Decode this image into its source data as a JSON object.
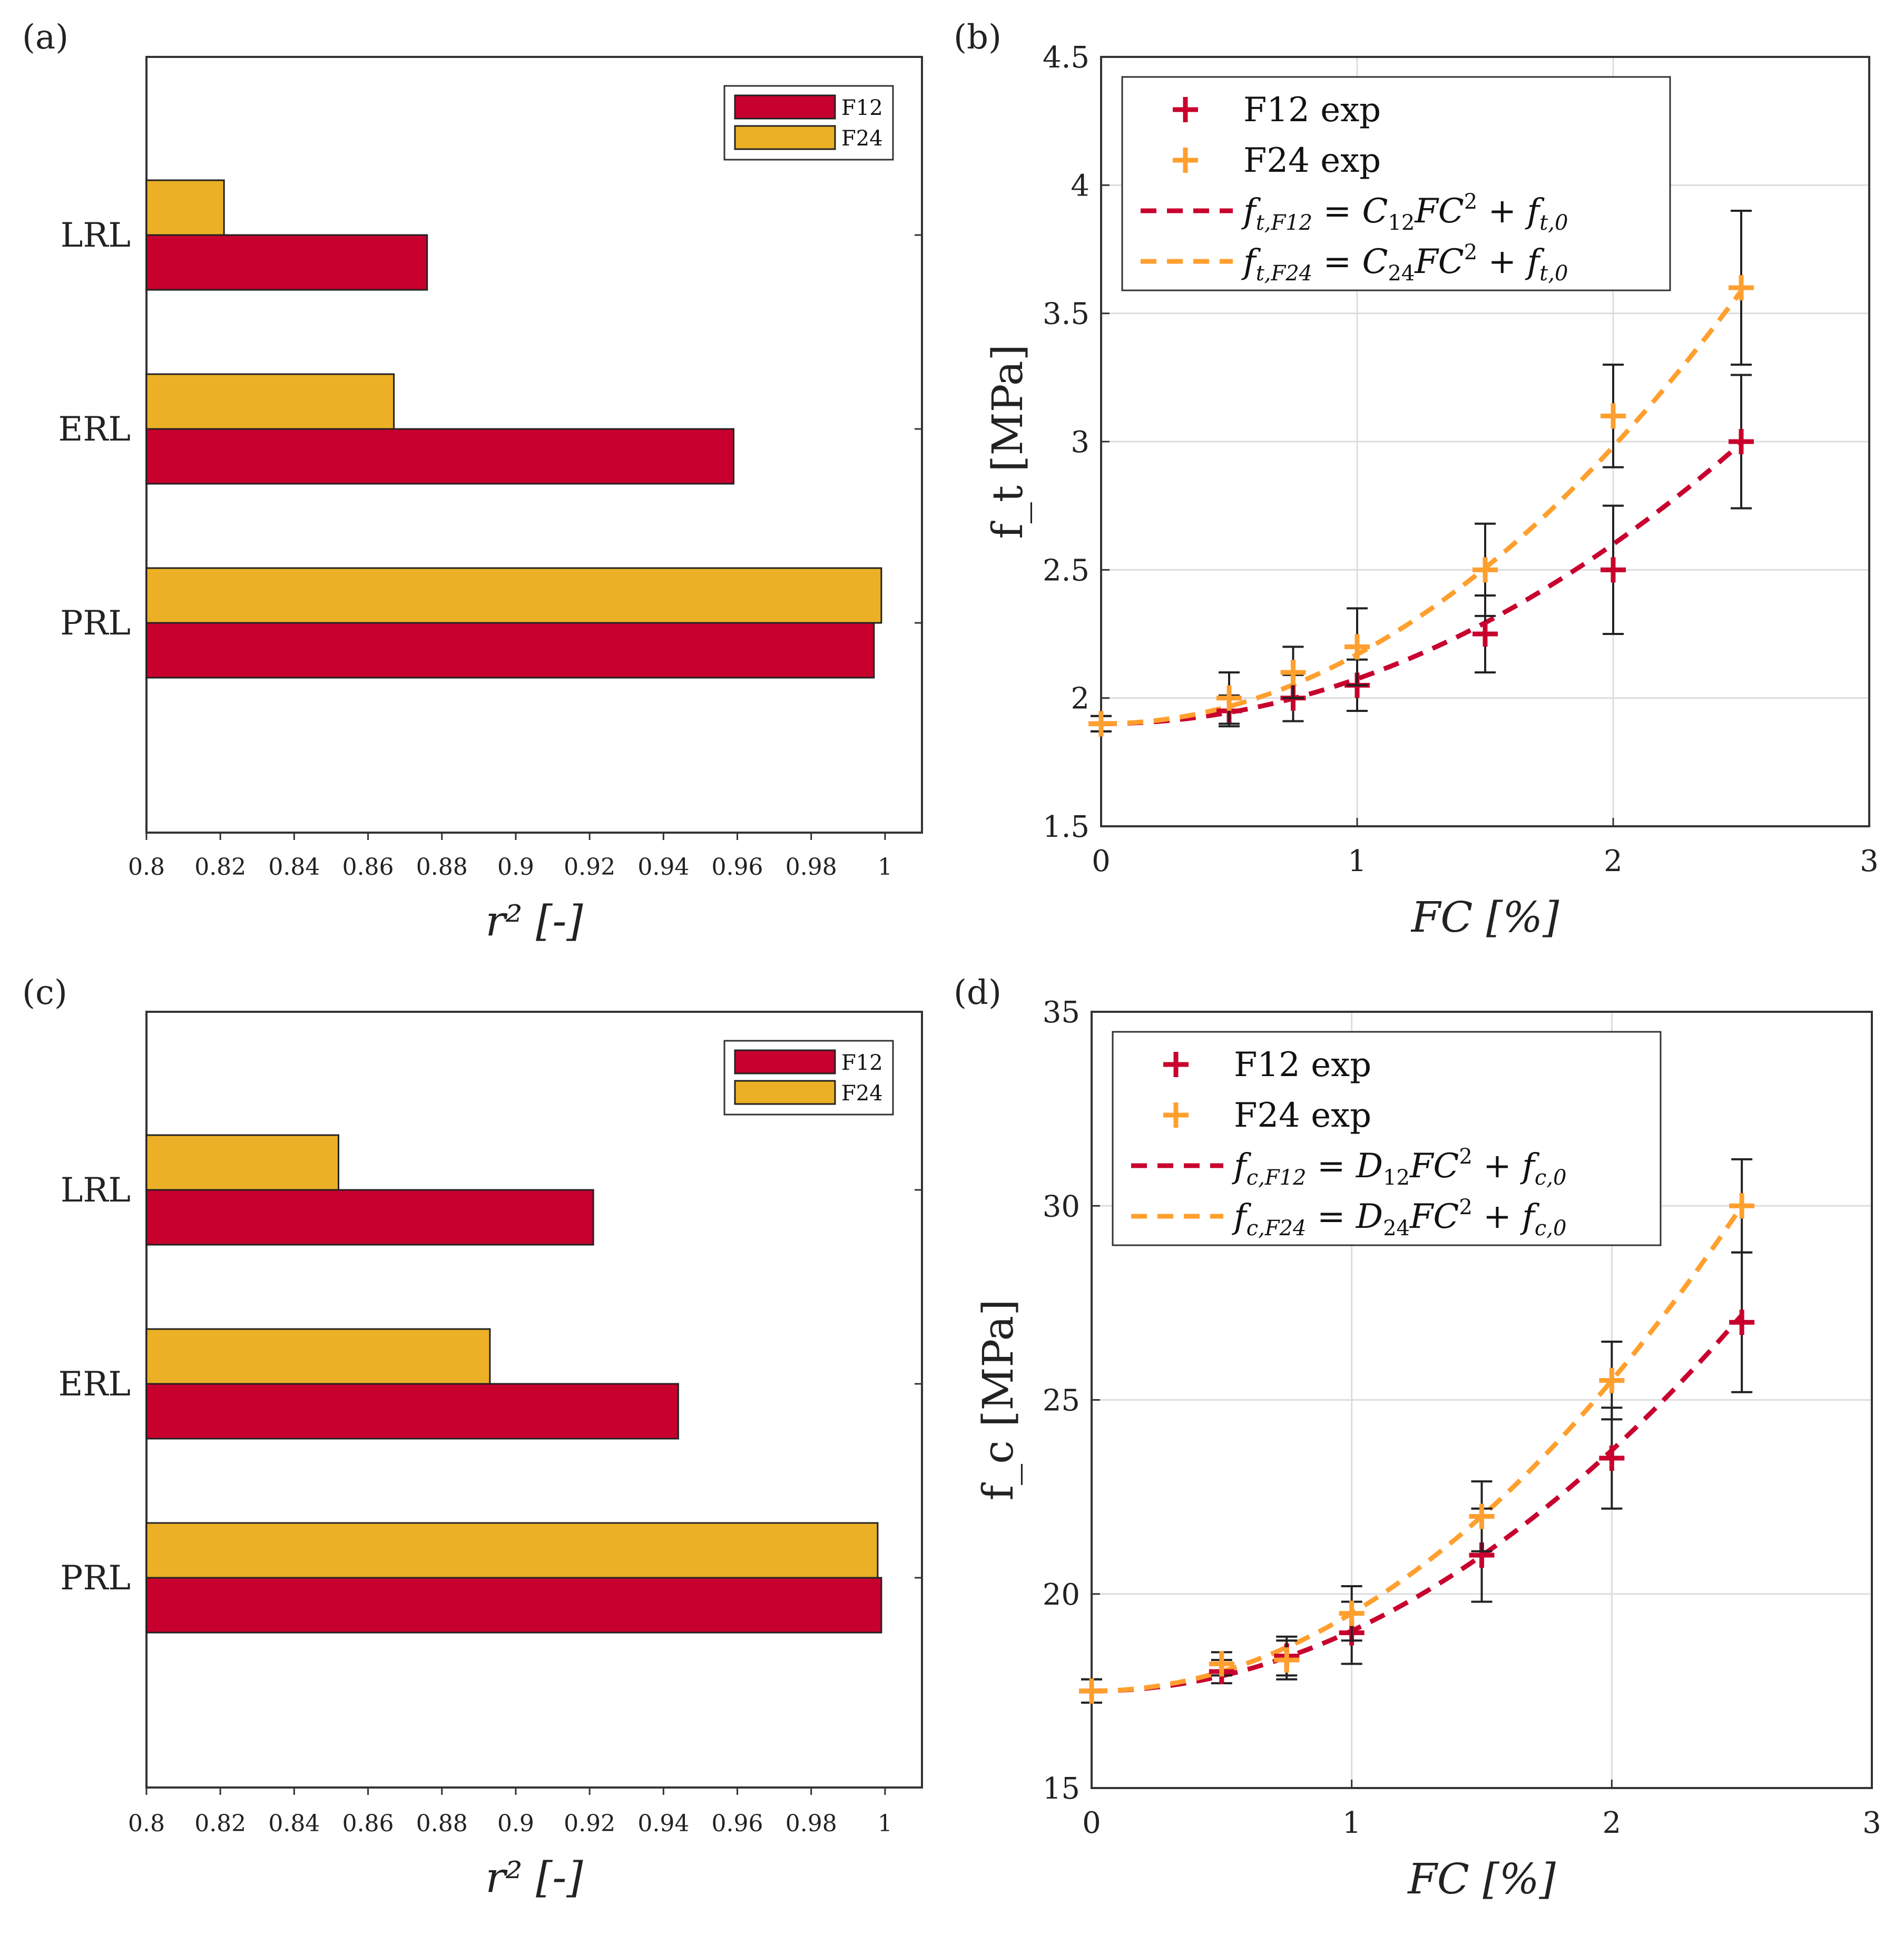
{
  "colors": {
    "f12": "#c8002e",
    "f24": "#ecb026",
    "f24_line": "#ff9f2e",
    "err": "#222222"
  },
  "chart_data": [
    {
      "id": "a",
      "panel_label": "(a)",
      "type": "bar",
      "orientation": "horizontal",
      "categories": [
        "LRL",
        "ERL",
        "PRL"
      ],
      "series": [
        {
          "name": "F12",
          "values": [
            0.876,
            0.959,
            0.997
          ]
        },
        {
          "name": "F24",
          "values": [
            0.821,
            0.867,
            0.999
          ]
        }
      ],
      "xlabel": "r² [-]",
      "xlim": [
        0.8,
        1.01
      ],
      "xticks": [
        0.8,
        0.82,
        0.84,
        0.86,
        0.88,
        0.9,
        0.92,
        0.94,
        0.96,
        0.98,
        1
      ],
      "xtick_labels": [
        "0.8",
        "0.82",
        "0.84",
        "0.86",
        "0.88",
        "0.9",
        "0.92",
        "0.94",
        "0.96",
        "0.98",
        "1"
      ],
      "legend": [
        "F12",
        "F24"
      ],
      "legend_position": "top-right"
    },
    {
      "id": "b",
      "panel_label": "(b)",
      "type": "scatter",
      "xlabel": "FC [%]",
      "ylabel": "f_t [MPa]",
      "xlim": [
        0,
        3
      ],
      "ylim": [
        1.5,
        4.5
      ],
      "xticks": [
        0,
        1,
        2,
        3
      ],
      "xtick_labels": [
        "0",
        "1",
        "2",
        "3"
      ],
      "yticks": [
        1.5,
        2,
        2.5,
        3,
        3.5,
        4,
        4.5
      ],
      "ytick_labels": [
        "1.5",
        "2",
        "2.5",
        "3",
        "3.5",
        "4",
        "4.5"
      ],
      "grid": true,
      "legend_position": "top-left",
      "series": [
        {
          "name": "F12 exp",
          "x": [
            0,
            0.5,
            0.75,
            1,
            1.5,
            2,
            2.5
          ],
          "y": [
            1.9,
            1.95,
            2.0,
            2.05,
            2.25,
            2.5,
            3.0
          ],
          "err": [
            0.03,
            0.06,
            0.09,
            0.1,
            0.15,
            0.25,
            0.26
          ]
        },
        {
          "name": "F24 exp",
          "x": [
            0,
            0.5,
            0.75,
            1,
            1.5,
            2,
            2.5
          ],
          "y": [
            1.9,
            2.0,
            2.1,
            2.2,
            2.5,
            3.1,
            3.6
          ],
          "err": [
            0.03,
            0.1,
            0.1,
            0.15,
            0.18,
            0.2,
            0.3
          ]
        }
      ],
      "fits": [
        {
          "name": "ft,F12 = C12·FC² + ft,0",
          "label_main": "f",
          "label_sub": "t,F12",
          "label_rhs": " = C",
          "label_coef_sub": "12",
          "label_tail": "FC",
          "label_sup": "2",
          "label_end_a": " + f",
          "label_end_sub": "t,0",
          "a": 0.175,
          "c": 1.9
        },
        {
          "name": "ft,F24 = C24·FC² + ft,0",
          "label_main": "f",
          "label_sub": "t,F24",
          "label_rhs": " = C",
          "label_coef_sub": "24",
          "label_tail": "FC",
          "label_sup": "2",
          "label_end_a": " + f",
          "label_end_sub": "t,0",
          "a": 0.27,
          "c": 1.9
        }
      ]
    },
    {
      "id": "c",
      "panel_label": "(c)",
      "type": "bar",
      "orientation": "horizontal",
      "categories": [
        "LRL",
        "ERL",
        "PRL"
      ],
      "series": [
        {
          "name": "F12",
          "values": [
            0.921,
            0.944,
            0.999
          ]
        },
        {
          "name": "F24",
          "values": [
            0.852,
            0.893,
            0.998
          ]
        }
      ],
      "xlabel": "r² [-]",
      "xlim": [
        0.8,
        1.01
      ],
      "xticks": [
        0.8,
        0.82,
        0.84,
        0.86,
        0.88,
        0.9,
        0.92,
        0.94,
        0.96,
        0.98,
        1
      ],
      "xtick_labels": [
        "0.8",
        "0.82",
        "0.84",
        "0.86",
        "0.88",
        "0.9",
        "0.92",
        "0.94",
        "0.96",
        "0.98",
        "1"
      ],
      "legend": [
        "F12",
        "F24"
      ],
      "legend_position": "top-right"
    },
    {
      "id": "d",
      "panel_label": "(d)",
      "type": "scatter",
      "xlabel": "FC [%]",
      "ylabel": "f_c [MPa]",
      "xlim": [
        0,
        3
      ],
      "ylim": [
        15,
        35
      ],
      "xticks": [
        0,
        1,
        2,
        3
      ],
      "xtick_labels": [
        "0",
        "1",
        "2",
        "3"
      ],
      "yticks": [
        15,
        20,
        25,
        30,
        35
      ],
      "ytick_labels": [
        "15",
        "20",
        "25",
        "30",
        "35"
      ],
      "grid": true,
      "legend_position": "top-left",
      "series": [
        {
          "name": "F12 exp",
          "x": [
            0,
            0.5,
            0.75,
            1,
            1.5,
            2,
            2.5
          ],
          "y": [
            17.5,
            18.0,
            18.4,
            19.0,
            21.0,
            23.5,
            27.0
          ],
          "err": [
            0.3,
            0.3,
            0.5,
            0.8,
            1.2,
            1.3,
            1.8
          ]
        },
        {
          "name": "F24 exp",
          "x": [
            0,
            0.5,
            0.75,
            1,
            1.5,
            2,
            2.5
          ],
          "y": [
            17.5,
            18.2,
            18.3,
            19.5,
            22.0,
            25.5,
            30.0
          ],
          "err": [
            0.3,
            0.3,
            0.5,
            0.7,
            0.9,
            1.0,
            1.2
          ]
        }
      ],
      "fits": [
        {
          "name": "fc,F12 = D12·FC² + fc,0",
          "label_main": "f",
          "label_sub": "c,F12",
          "label_rhs": " = D",
          "label_coef_sub": "12",
          "label_tail": "FC",
          "label_sup": "2",
          "label_end_a": " + f",
          "label_end_sub": "c,0",
          "a": 1.55,
          "c": 17.5
        },
        {
          "name": "fc,F24 = D24·FC² + fc,0",
          "label_main": "f",
          "label_sub": "c,F24",
          "label_rhs": " = D",
          "label_coef_sub": "24",
          "label_tail": "FC",
          "label_sup": "2",
          "label_end_a": " + f",
          "label_end_sub": "c,0",
          "a": 2.0,
          "c": 17.5
        }
      ]
    }
  ]
}
